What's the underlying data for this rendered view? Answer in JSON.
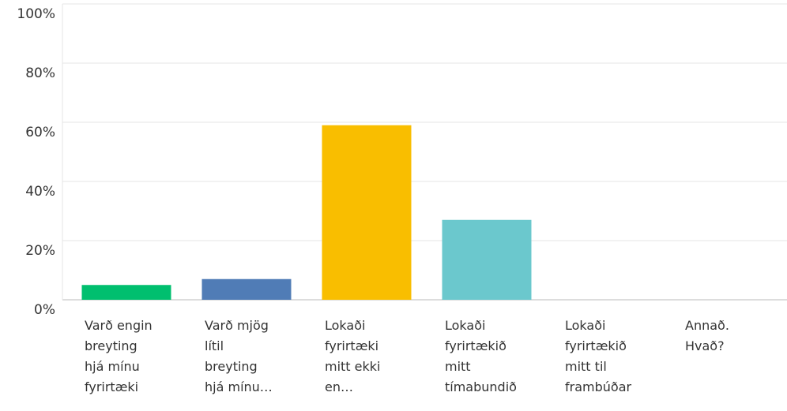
{
  "chart_data": {
    "type": "bar",
    "categories": [
      "Varð engin\nbreyting\nhjá mínu\nfyrirtæki",
      "Varð mjög\nlítil\nbreyting\nhjá mínu…",
      "Lokaði\nfyrirtæki\nmitt ekki\nen…",
      "Lokaði\nfyrirtækið\nmitt\ntímabundið",
      "Lokaði\nfyrirtækið\nmitt til\nframbúðar",
      "Annað.\nHvað?"
    ],
    "values": [
      5,
      7,
      59,
      27,
      0,
      0
    ],
    "colors": [
      "#00bf6f",
      "#507cb6",
      "#f9be00",
      "#6bc8cd"
    ],
    "ylim": [
      0,
      100
    ],
    "yticks": [
      {
        "value": 0,
        "label": "0%"
      },
      {
        "value": 20,
        "label": "20%"
      },
      {
        "value": 40,
        "label": "40%"
      },
      {
        "value": 60,
        "label": "60%"
      },
      {
        "value": 80,
        "label": "80%"
      },
      {
        "value": 100,
        "label": "100%"
      }
    ],
    "grid": true
  }
}
